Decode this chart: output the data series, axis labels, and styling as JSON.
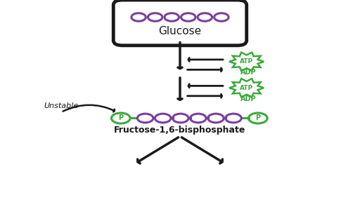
{
  "bg_color": "#ffffff",
  "glucose_circles_color": "#7b3f9e",
  "glucose_text": "Glucose",
  "glucose_text_color": "#1a1a1a",
  "arrow_color": "#1a1a1a",
  "atp_color": "#3aaa3a",
  "fructose_circles_color": "#7b3f9e",
  "phosphate_color": "#3aaa3a",
  "fructose_text": "Fructose-1,6-bisphosphate",
  "fructose_text_color": "#1a1a1a",
  "unstable_text": "Unstable",
  "unstable_color": "#1a1a1a"
}
